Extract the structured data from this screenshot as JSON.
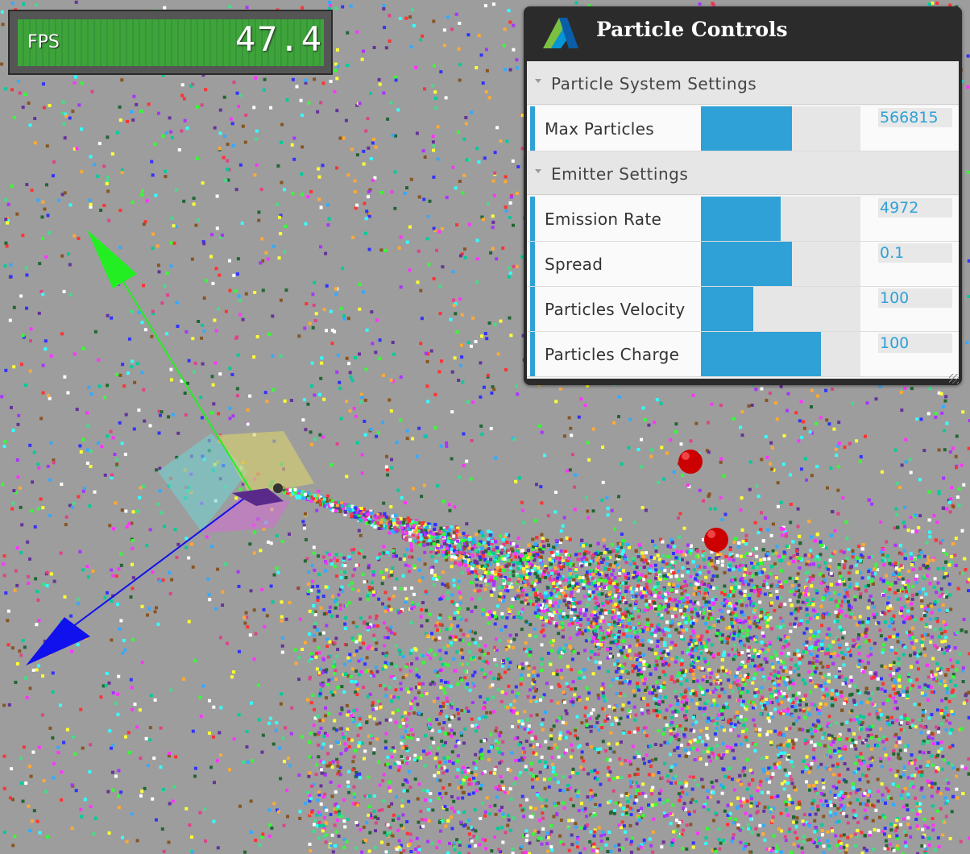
{
  "fps": {
    "label": "FPS",
    "value": "47.4"
  },
  "panel": {
    "title": "Particle Controls",
    "sections": [
      {
        "title": "Particle System Settings",
        "rows": [
          {
            "label": "Max Particles",
            "value": "566815",
            "fill": 0.57
          }
        ]
      },
      {
        "title": "Emitter Settings",
        "rows": [
          {
            "label": "Emission Rate",
            "value": "4972",
            "fill": 0.5
          },
          {
            "label": "Spread",
            "value": "0.1",
            "fill": 0.57
          },
          {
            "label": "Particles Velocity",
            "value": "100",
            "fill": 0.33
          },
          {
            "label": "Particles Charge",
            "value": "100",
            "fill": 0.75
          }
        ]
      }
    ]
  },
  "colors": {
    "background": "#9d9d9d",
    "accent": "#2fa1d6",
    "fps_green": "#3ea43a",
    "panel_dark": "#2b2b2b",
    "axis_y": "#22ee22",
    "axis_z": "#1111ee",
    "charge_sphere": "#cc0000"
  },
  "icons": {
    "panel_logo": "autodesk-logo-icon",
    "section_toggle": "triangle-down-icon",
    "resize": "resize-handle-icon"
  }
}
